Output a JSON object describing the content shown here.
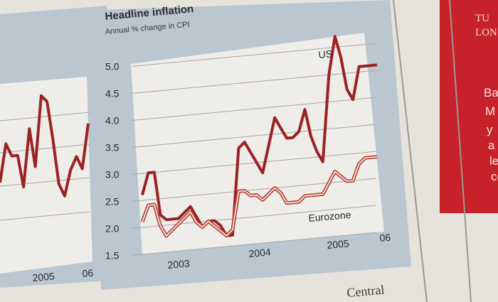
{
  "chart_data": [
    {
      "type": "line",
      "title": "Headline inflation",
      "subtitle": "Annual % change in CPI",
      "ylim": [
        1.5,
        5.0
      ],
      "yticks": [
        "1.5",
        "2.0",
        "2.5",
        "3.0",
        "3.5",
        "4.0",
        "4.5",
        "5.0"
      ],
      "xticks": [
        "2003",
        "2004",
        "2005",
        "06"
      ],
      "x": [
        0,
        1,
        2,
        3,
        4,
        5,
        6,
        7,
        8,
        9,
        10,
        11,
        12,
        13,
        14,
        15,
        16,
        17,
        18,
        19,
        20,
        21,
        22,
        23,
        24,
        25,
        26,
        27,
        28,
        29,
        30,
        31,
        32,
        33,
        34,
        35,
        36,
        37,
        38,
        39
      ],
      "series": [
        {
          "name": "US",
          "values": [
            2.6,
            3.0,
            3.0,
            2.2,
            2.1,
            2.1,
            2.1,
            2.2,
            2.3,
            2.1,
            1.9,
            2.0,
            2.0,
            1.9,
            1.7,
            1.7,
            3.3,
            3.4,
            3.2,
            3.0,
            2.8,
            3.3,
            3.8,
            3.6,
            3.4,
            3.4,
            3.5,
            3.9,
            3.4,
            3.1,
            2.9,
            4.5,
            5.2,
            4.8,
            4.2,
            4.0,
            4.6,
            4.6,
            4.6,
            4.6
          ]
        },
        {
          "name": "Eurozone",
          "values": [
            2.1,
            2.4,
            2.4,
            2.0,
            1.8,
            1.9,
            2.0,
            2.1,
            2.2,
            2.0,
            1.9,
            2.0,
            1.9,
            1.8,
            1.7,
            1.8,
            2.5,
            2.5,
            2.4,
            2.4,
            2.3,
            2.4,
            2.5,
            2.4,
            2.2,
            2.2,
            2.2,
            2.3,
            2.3,
            2.3,
            2.3,
            2.5,
            2.7,
            2.6,
            2.5,
            2.5,
            2.8,
            2.9,
            2.9,
            2.9
          ]
        }
      ],
      "series_labels": {
        "US": "US",
        "Eurozone": "Eurozone"
      }
    },
    {
      "type": "line",
      "title": "",
      "xticks": [
        "2005",
        "06"
      ],
      "series": [
        {
          "name": "left-panel",
          "values": [
            2.7,
            3.3,
            3.1,
            3.1,
            2.6,
            3.5,
            2.9,
            4.0,
            3.9,
            3.3,
            2.6,
            2.4,
            2.8,
            3.0,
            2.8,
            3.5
          ]
        }
      ]
    }
  ],
  "newspaper": {
    "red_panel_header": [
      "TU",
      "LON"
    ],
    "red_panel_text": [
      "Ba",
      "M",
      "y",
      "a",
      "le",
      "ce"
    ],
    "footer_text": "Central"
  },
  "colors": {
    "panel_bg": "#b9c5cf",
    "plot_bg": "#f0eeea",
    "us_line": "#9b2222",
    "euro_line": "#b8463d",
    "red_panel": "#c72129",
    "paper": "#e9e6e0"
  }
}
